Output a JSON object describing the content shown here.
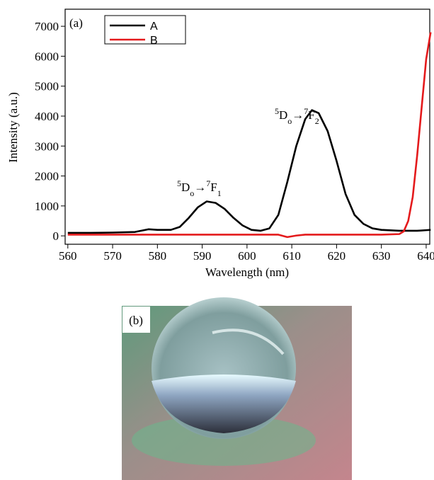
{
  "chart_data": {
    "type": "line",
    "panel_label": "(a)",
    "x_label": "Wavelength (nm)",
    "y_label": "Intensity (a.u.)",
    "x": [
      560,
      565,
      570,
      575,
      578,
      580,
      583,
      585,
      587,
      589,
      591,
      593,
      595,
      597,
      599,
      601,
      603,
      605,
      607,
      609,
      611,
      613,
      614.5,
      616,
      618,
      620,
      622,
      624,
      626,
      628,
      630,
      634,
      635,
      636,
      637,
      638,
      639,
      640,
      641
    ],
    "series": [
      {
        "name": "A",
        "color": "#000000",
        "values": [
          100,
          100,
          110,
          130,
          220,
          200,
          200,
          300,
          600,
          950,
          1150,
          1100,
          900,
          600,
          350,
          200,
          170,
          250,
          700,
          1800,
          3000,
          3900,
          4200,
          4100,
          3500,
          2500,
          1400,
          700,
          400,
          250,
          200,
          170,
          170,
          170,
          170,
          170,
          180,
          190,
          200
        ]
      },
      {
        "name": "B",
        "color": "#e41a1c",
        "values": [
          40,
          40,
          40,
          40,
          40,
          40,
          40,
          40,
          40,
          40,
          40,
          40,
          40,
          40,
          40,
          40,
          40,
          40,
          40,
          -40,
          10,
          40,
          40,
          40,
          40,
          40,
          40,
          40,
          40,
          40,
          40,
          60,
          150,
          500,
          1300,
          2700,
          4300,
          5900,
          6800
        ]
      }
    ],
    "xlim": [
      559.4,
      640.8
    ],
    "ylim": [
      -280,
      7570
    ],
    "xticks": [
      560,
      570,
      580,
      590,
      600,
      610,
      620,
      630,
      640
    ],
    "yticks": [
      0,
      1000,
      2000,
      3000,
      4000,
      5000,
      6000,
      7000
    ],
    "legend": "upper-left",
    "annotations": [
      {
        "parts": [
          "5",
          "D",
          "o",
          "→",
          "7",
          "F",
          "1"
        ]
      },
      {
        "parts": [
          "5",
          "D",
          "o",
          "→",
          "7",
          "F",
          "2"
        ]
      }
    ]
  },
  "photo": {
    "label": "(b)"
  }
}
